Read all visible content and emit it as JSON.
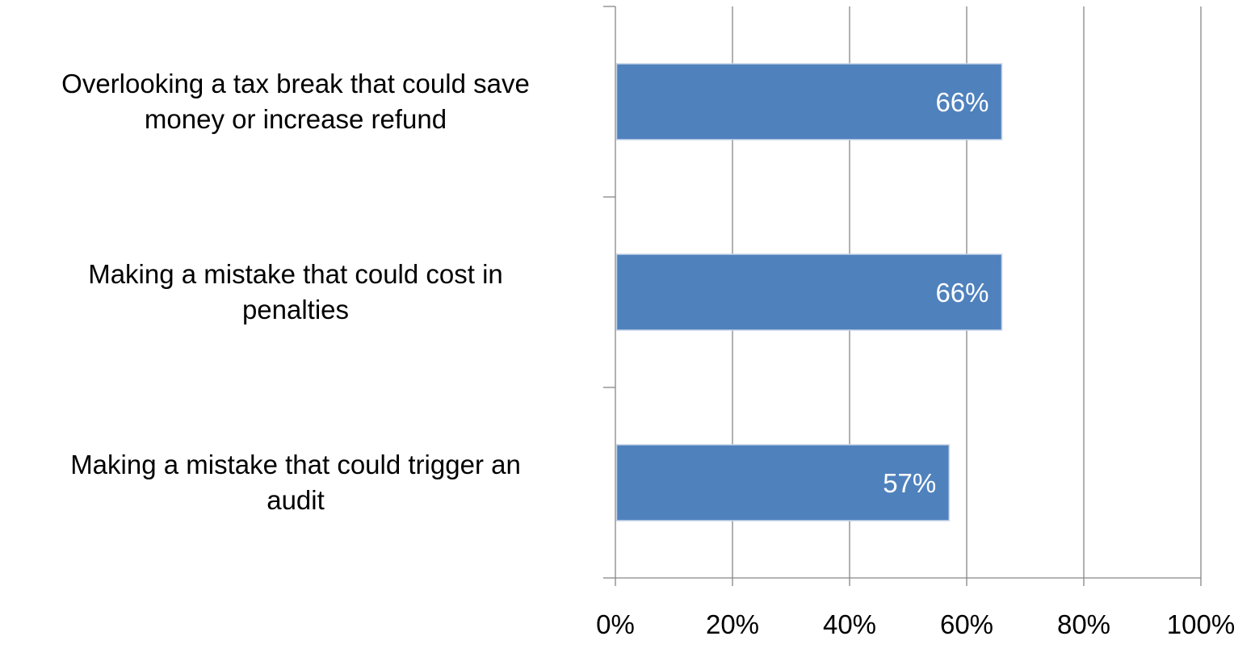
{
  "chart_data": {
    "type": "bar",
    "orientation": "horizontal",
    "categories": [
      [
        "Overlooking a tax break that could save",
        "money or increase refund"
      ],
      [
        "Making a mistake that could cost in",
        "penalties"
      ],
      [
        "Making a mistake that could trigger an",
        "audit"
      ]
    ],
    "values": [
      66,
      66,
      57
    ],
    "value_labels": [
      "66%",
      "66%",
      "57%"
    ],
    "xlim": [
      0,
      100
    ],
    "x_ticks": [
      0,
      20,
      40,
      60,
      80,
      100
    ],
    "x_tick_labels": [
      "0%",
      "20%",
      "40%",
      "60%",
      "80%",
      "100%"
    ],
    "title": "",
    "xlabel": "",
    "ylabel": "",
    "grid": "vertical",
    "legend": "none",
    "colors": {
      "bar": "#4f81bd",
      "bar_border": "#c6d4e8",
      "grid": "#868686",
      "axis": "#868686",
      "data_label": "#ffffff",
      "text": "#000000"
    }
  }
}
